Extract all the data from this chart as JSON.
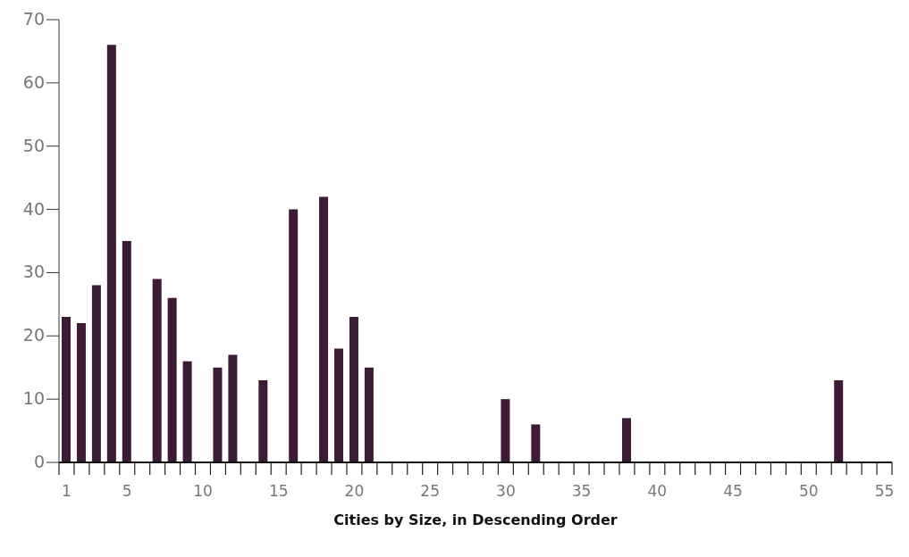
{
  "chart_data": {
    "type": "bar",
    "xlabel": "Cities by Size, in Descending Order",
    "x": [
      1,
      2,
      3,
      4,
      5,
      7,
      8,
      9,
      11,
      12,
      14,
      16,
      18,
      19,
      20,
      21,
      30,
      32,
      38,
      52
    ],
    "values": [
      23,
      22,
      28,
      66,
      35,
      29,
      26,
      16,
      15,
      17,
      13,
      40,
      42,
      18,
      23,
      15,
      10,
      6,
      7,
      13
    ],
    "color": "#3d1a35",
    "xlim": [
      0.5,
      55.5
    ],
    "xticks": [
      {
        "value": 0.5,
        "label": null
      },
      {
        "value": 1,
        "label": "1"
      },
      {
        "value": 1.5,
        "label": null
      },
      {
        "value": 2.5,
        "label": null
      },
      {
        "value": 3.5,
        "label": null
      },
      {
        "value": 4.5,
        "label": null
      },
      {
        "value": 5,
        "label": "5"
      },
      {
        "value": 5.5,
        "label": null
      },
      {
        "value": 6.5,
        "label": null
      },
      {
        "value": 7.5,
        "label": null
      },
      {
        "value": 8.5,
        "label": null
      },
      {
        "value": 9.5,
        "label": null
      },
      {
        "value": 10,
        "label": "10"
      },
      {
        "value": 10.5,
        "label": null
      },
      {
        "value": 11.5,
        "label": null
      },
      {
        "value": 12.5,
        "label": null
      },
      {
        "value": 13.5,
        "label": null
      },
      {
        "value": 14.5,
        "label": null
      },
      {
        "value": 15,
        "label": "15"
      },
      {
        "value": 15.5,
        "label": null
      },
      {
        "value": 16.5,
        "label": null
      },
      {
        "value": 17.5,
        "label": null
      },
      {
        "value": 18.5,
        "label": null
      },
      {
        "value": 19.5,
        "label": null
      },
      {
        "value": 20,
        "label": "20"
      },
      {
        "value": 20.5,
        "label": null
      },
      {
        "value": 21.5,
        "label": null
      },
      {
        "value": 22.5,
        "label": null
      },
      {
        "value": 23.5,
        "label": null
      },
      {
        "value": 24.5,
        "label": null
      },
      {
        "value": 25,
        "label": "25"
      },
      {
        "value": 25.5,
        "label": null
      },
      {
        "value": 26.5,
        "label": null
      },
      {
        "value": 27.5,
        "label": null
      },
      {
        "value": 28.5,
        "label": null
      },
      {
        "value": 29.5,
        "label": null
      },
      {
        "value": 30,
        "label": "30"
      },
      {
        "value": 30.5,
        "label": null
      },
      {
        "value": 31.5,
        "label": null
      },
      {
        "value": 32.5,
        "label": null
      },
      {
        "value": 33.5,
        "label": null
      },
      {
        "value": 34.5,
        "label": null
      },
      {
        "value": 35,
        "label": "35"
      },
      {
        "value": 35.5,
        "label": null
      },
      {
        "value": 36.5,
        "label": null
      },
      {
        "value": 37.5,
        "label": null
      },
      {
        "value": 38.5,
        "label": null
      },
      {
        "value": 39.5,
        "label": null
      },
      {
        "value": 40,
        "label": "40"
      },
      {
        "value": 40.5,
        "label": null
      },
      {
        "value": 41.5,
        "label": null
      },
      {
        "value": 42.5,
        "label": null
      },
      {
        "value": 43.5,
        "label": null
      },
      {
        "value": 44.5,
        "label": null
      },
      {
        "value": 45,
        "label": "45"
      },
      {
        "value": 45.5,
        "label": null
      },
      {
        "value": 46.5,
        "label": null
      },
      {
        "value": 47.5,
        "label": null
      },
      {
        "value": 48.5,
        "label": null
      },
      {
        "value": 49.5,
        "label": null
      },
      {
        "value": 50,
        "label": "50"
      },
      {
        "value": 50.5,
        "label": null
      },
      {
        "value": 51.5,
        "label": null
      },
      {
        "value": 52.5,
        "label": null
      },
      {
        "value": 53.5,
        "label": null
      },
      {
        "value": 54.5,
        "label": null
      },
      {
        "value": 55,
        "label": "55"
      },
      {
        "value": 55.5,
        "label": null
      }
    ],
    "ylim": [
      0,
      70
    ],
    "yticks": [
      0,
      10,
      20,
      30,
      40,
      50,
      60,
      70
    ]
  }
}
